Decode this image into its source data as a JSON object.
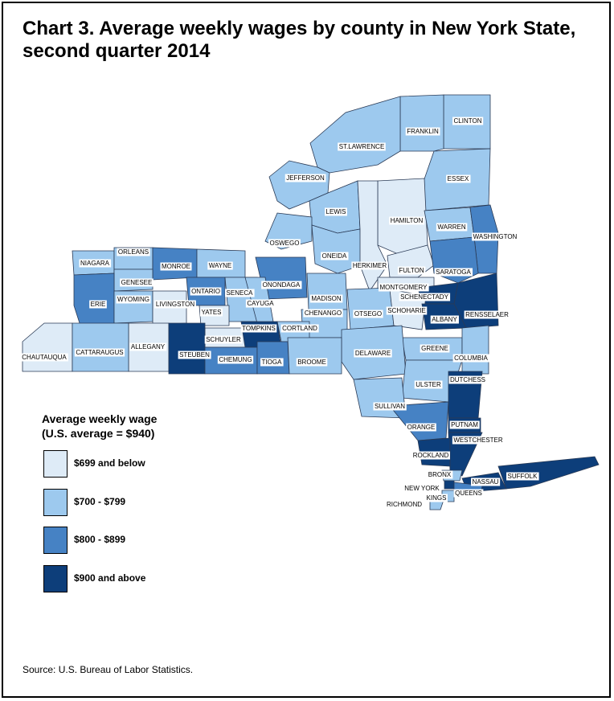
{
  "title_line1": "Chart 3. Average weekly wages by county in New York State,",
  "title_line2": "second quarter 2014",
  "legend": {
    "title_line1": "Average weekly wage",
    "title_line2": "(U.S. average = $940)",
    "items": [
      {
        "label": "$699 and below",
        "color": "#deebf7"
      },
      {
        "label": "$700 - $799",
        "color": "#9dc9ee"
      },
      {
        "label": "$800 - $899",
        "color": "#4682c4"
      },
      {
        "label": "$900 and above",
        "color": "#0d3e7a"
      }
    ]
  },
  "source": "Source: U.S. Bureau of Labor Statistics.",
  "counties": [
    {
      "name": "CLINTON",
      "bin": 1
    },
    {
      "name": "FRANKLIN",
      "bin": 1
    },
    {
      "name": "ST.LAWRENCE",
      "bin": 1
    },
    {
      "name": "ESSEX",
      "bin": 1
    },
    {
      "name": "JEFFERSON",
      "bin": 1
    },
    {
      "name": "LEWIS",
      "bin": 1
    },
    {
      "name": "HAMILTON",
      "bin": 0
    },
    {
      "name": "WARREN",
      "bin": 1
    },
    {
      "name": "WASHINGTON",
      "bin": 2
    },
    {
      "name": "OSWEGO",
      "bin": 1
    },
    {
      "name": "ONEIDA",
      "bin": 1
    },
    {
      "name": "HERKIMER",
      "bin": 0
    },
    {
      "name": "FULTON",
      "bin": 0
    },
    {
      "name": "SARATOGA",
      "bin": 2
    },
    {
      "name": "NIAGARA",
      "bin": 1
    },
    {
      "name": "ORLEANS",
      "bin": 1
    },
    {
      "name": "MONROE",
      "bin": 2
    },
    {
      "name": "WAYNE",
      "bin": 1
    },
    {
      "name": "GENESEE",
      "bin": 1
    },
    {
      "name": "ONONDAGA",
      "bin": 2
    },
    {
      "name": "MONTGOMERY",
      "bin": 0
    },
    {
      "name": "SCHENECTADY",
      "bin": 3
    },
    {
      "name": "ERIE",
      "bin": 2
    },
    {
      "name": "WYOMING",
      "bin": 1
    },
    {
      "name": "ONTARIO",
      "bin": 2
    },
    {
      "name": "SENECA",
      "bin": 1
    },
    {
      "name": "MADISON",
      "bin": 1
    },
    {
      "name": "LIVINGSTON",
      "bin": 0
    },
    {
      "name": "CAYUGA",
      "bin": 1
    },
    {
      "name": "OTSEGO",
      "bin": 1
    },
    {
      "name": "SCHOHARIE",
      "bin": 0
    },
    {
      "name": "RENSSELAER",
      "bin": 3
    },
    {
      "name": "YATES",
      "bin": 0
    },
    {
      "name": "CHENANGO",
      "bin": 1
    },
    {
      "name": "ALBANY",
      "bin": 3
    },
    {
      "name": "SCHUYLER",
      "bin": 0
    },
    {
      "name": "TOMPKINS",
      "bin": 3
    },
    {
      "name": "CORTLAND",
      "bin": 1
    },
    {
      "name": "GREENE",
      "bin": 1
    },
    {
      "name": "ALLEGANY",
      "bin": 0
    },
    {
      "name": "CHAUTAUQUA",
      "bin": 0
    },
    {
      "name": "CATTARAUGUS",
      "bin": 1
    },
    {
      "name": "STEUBEN",
      "bin": 3
    },
    {
      "name": "CHEMUNG",
      "bin": 2
    },
    {
      "name": "TIOGA",
      "bin": 2
    },
    {
      "name": "DELAWARE",
      "bin": 1
    },
    {
      "name": "BROOME",
      "bin": 1
    },
    {
      "name": "COLUMBIA",
      "bin": 1
    },
    {
      "name": "ULSTER",
      "bin": 1
    },
    {
      "name": "DUTCHESS",
      "bin": 3
    },
    {
      "name": "SULLIVAN",
      "bin": 1
    },
    {
      "name": "ORANGE",
      "bin": 2
    },
    {
      "name": "PUTNAM",
      "bin": 3
    },
    {
      "name": "WESTCHESTER",
      "bin": 3
    },
    {
      "name": "ROCKLAND",
      "bin": 3
    },
    {
      "name": "BRONX",
      "bin": 1
    },
    {
      "name": "NASSAU",
      "bin": 3
    },
    {
      "name": "SUFFOLK",
      "bin": 3
    },
    {
      "name": "NEW YORK",
      "bin": 3
    },
    {
      "name": "QUEENS",
      "bin": 2
    },
    {
      "name": "KINGS",
      "bin": 1
    },
    {
      "name": "RICHMOND",
      "bin": 1
    }
  ]
}
